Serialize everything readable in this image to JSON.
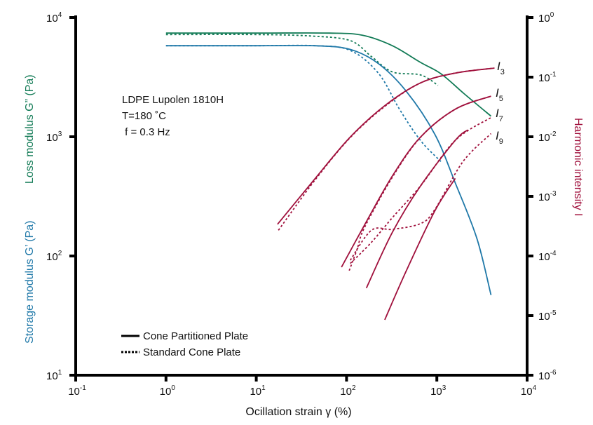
{
  "colors": {
    "storage": "#1f78a8",
    "loss": "#117a55",
    "harmonic": "#a0103c",
    "axis": "#000000"
  },
  "chart_data": {
    "type": "line",
    "title": "",
    "xlabel": "Ocillation strain γ (%)",
    "ylabel_left_storage": "Storage modulus G’ (Pa)",
    "ylabel_left_loss": "Loss modulus G” (Pa)",
    "ylabel_right": "Harmonic intensity I",
    "x_scale": "log",
    "xlim": [
      0.1,
      10000
    ],
    "ylim_left": [
      10,
      10000
    ],
    "ylim_right": [
      1e-06,
      1
    ],
    "x_ticks": [
      {
        "base": "10",
        "exp": "-1"
      },
      {
        "base": "10",
        "exp": "0"
      },
      {
        "base": "10",
        "exp": "1"
      },
      {
        "base": "10",
        "exp": "2"
      },
      {
        "base": "10",
        "exp": "3"
      },
      {
        "base": "10",
        "exp": "4"
      }
    ],
    "y_left_ticks": [
      {
        "base": "10",
        "exp": "4"
      },
      {
        "base": "10",
        "exp": "3"
      },
      {
        "base": "10",
        "exp": "2"
      },
      {
        "base": "10",
        "exp": "1"
      }
    ],
    "y_right_ticks": [
      {
        "base": "10",
        "exp": "0"
      },
      {
        "base": "10",
        "exp": "-1"
      },
      {
        "base": "10",
        "exp": "-2"
      },
      {
        "base": "10",
        "exp": "-3"
      },
      {
        "base": "10",
        "exp": "-4"
      },
      {
        "base": "10",
        "exp": "-5"
      },
      {
        "base": "10",
        "exp": "-6"
      }
    ],
    "annotation": [
      "LDPE Lupolen 1810H",
      "T=180 ˚C",
      " f = 0.3 Hz"
    ],
    "legend": {
      "position": "bottom-left",
      "entries": [
        {
          "label": "Cone Partitioned Plate",
          "style": "solid"
        },
        {
          "label": "Standard Cone Plate",
          "style": "dotted"
        }
      ]
    },
    "harmonic_labels": [
      {
        "letter": "I",
        "sub": "3"
      },
      {
        "letter": "I",
        "sub": "5"
      },
      {
        "letter": "I",
        "sub": "7"
      },
      {
        "letter": "I",
        "sub": "9"
      }
    ],
    "series": [
      {
        "name": "G'' Cone Partitioned Plate",
        "axis": "left",
        "color": "loss",
        "style": "solid",
        "x": [
          1,
          10,
          65,
          150,
          322,
          660,
          1110,
          2000,
          3980
        ],
        "y": [
          7400,
          7400,
          7400,
          7100,
          5800,
          4200,
          3380,
          2300,
          1490
        ]
      },
      {
        "name": "G'' Standard Cone Plate",
        "axis": "left",
        "color": "loss",
        "style": "dotted",
        "x": [
          1,
          10,
          40,
          110,
          189,
          322,
          660,
          1030
        ],
        "y": [
          7200,
          7200,
          7000,
          6400,
          4700,
          3500,
          3300,
          2700
        ]
      },
      {
        "name": "G' Cone Partitioned Plate",
        "axis": "left",
        "color": "storage",
        "style": "solid",
        "x": [
          1,
          10,
          45,
          110,
          226,
          460,
          950,
          1600,
          2780,
          3980
        ],
        "y": [
          5800,
          5800,
          5800,
          5400,
          4100,
          2400,
          1050,
          410,
          140,
          47
        ]
      },
      {
        "name": "G' Standard Cone Plate",
        "axis": "left",
        "color": "storage",
        "style": "dotted",
        "x": [
          1,
          10,
          45,
          110,
          226,
          386,
          660,
          1110
        ],
        "y": [
          5800,
          5800,
          5800,
          5300,
          3400,
          1700,
          930,
          620
        ]
      },
      {
        "name": "I3 Cone Partitioned Plate",
        "axis": "right",
        "color": "harmonic",
        "style": "solid",
        "x": [
          17.2,
          45,
          110,
          270,
          660,
          1600,
          4350
        ],
        "y": [
          0.00034,
          0.002,
          0.0099,
          0.034,
          0.08,
          0.117,
          0.142
        ]
      },
      {
        "name": "I3 Standard Cone Plate",
        "axis": "right",
        "color": "harmonic",
        "style": "dotted",
        "x": [
          17.6,
          45,
          110,
          270,
          660,
          1600,
          4350
        ],
        "y": [
          0.00027,
          0.0019,
          0.0097,
          0.033,
          0.08,
          0.117,
          0.142
        ]
      },
      {
        "name": "I5 Cone Partitioned Plate",
        "axis": "right",
        "color": "harmonic",
        "style": "solid",
        "x": [
          88,
          158,
          322,
          660,
          1600,
          3980
        ],
        "y": [
          6.5e-05,
          0.00033,
          0.0022,
          0.0099,
          0.029,
          0.048
        ]
      },
      {
        "name": "I5 Standard Cone Plate",
        "axis": "right",
        "color": "harmonic",
        "style": "dotted",
        "x": [
          107,
          131,
          158,
          322,
          660,
          1600,
          3980
        ],
        "y": [
          5.7e-05,
          0.00013,
          0.0003,
          0.0021,
          0.0098,
          0.029,
          0.048
        ]
      },
      {
        "name": "I7 Cone Partitioned Plate",
        "axis": "right",
        "color": "harmonic",
        "style": "solid",
        "x": [
          166,
          322,
          660,
          1600,
          2200
        ],
        "y": [
          2.9e-05,
          0.00025,
          0.0015,
          0.0087,
          0.013
        ]
      },
      {
        "name": "I7 Standard Cone Plate",
        "axis": "right",
        "color": "harmonic",
        "style": "dotted",
        "x": [
          110,
          189,
          322,
          660,
          1600,
          3980
        ],
        "y": [
          7.5e-05,
          0.00017,
          0.00044,
          0.0015,
          0.0087,
          0.021
        ]
      },
      {
        "name": "I9 Cone Partitioned Plate",
        "axis": "right",
        "color": "harmonic",
        "style": "solid",
        "x": [
          265,
          460,
          950,
          1600
        ],
        "y": [
          8.5e-06,
          5.7e-05,
          0.00057,
          0.002
        ]
      },
      {
        "name": "I9 Standard Cone Plate",
        "axis": "right",
        "color": "harmonic",
        "style": "dotted",
        "x": [
          110,
          189,
          322,
          660,
          950,
          1940,
          3980
        ],
        "y": [
          8.5e-05,
          0.00027,
          0.00028,
          0.00035,
          0.0006,
          0.0038,
          0.0113
        ]
      }
    ]
  }
}
